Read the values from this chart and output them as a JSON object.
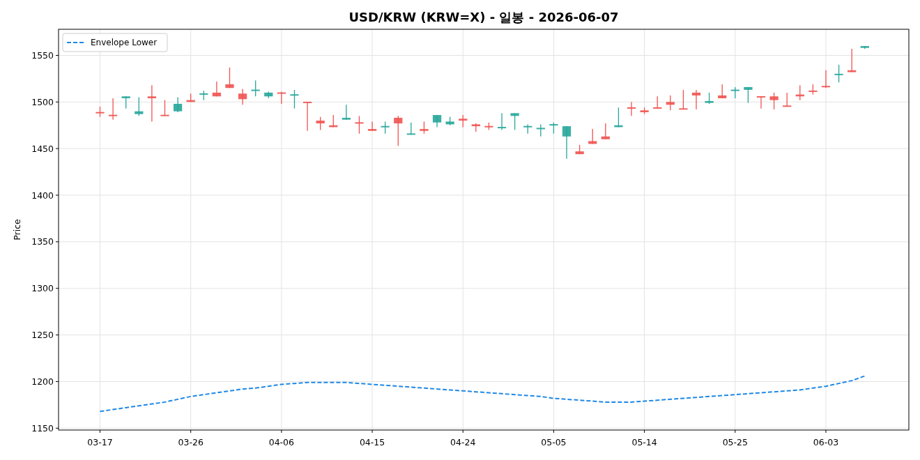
{
  "chart_data": {
    "type": "candlestick",
    "title": "USD/KRW (KRW=X) - 일봉 - 2026-06-07",
    "ylabel": "Price",
    "categories": [
      "03-17",
      null,
      null,
      null,
      null,
      null,
      null,
      "03-26",
      null,
      null,
      null,
      null,
      null,
      null,
      "04-06",
      null,
      null,
      null,
      null,
      null,
      null,
      "04-15",
      null,
      null,
      null,
      null,
      null,
      null,
      "04-24",
      null,
      null,
      null,
      null,
      null,
      null,
      "05-05",
      null,
      null,
      null,
      null,
      null,
      null,
      "05-14",
      null,
      null,
      null,
      null,
      null,
      null,
      "05-25",
      null,
      null,
      null,
      null,
      null,
      null,
      "06-03",
      null,
      null,
      null
    ],
    "ohlc": [
      [
        1488,
        1495,
        1484,
        1489
      ],
      [
        1485,
        1504,
        1481,
        1486
      ],
      [
        1506,
        1506,
        1493,
        1504
      ],
      [
        1490,
        1505,
        1485,
        1487
      ],
      [
        1504,
        1518,
        1479,
        1506
      ],
      [
        1485,
        1502,
        1485,
        1486
      ],
      [
        1498,
        1505,
        1489,
        1490
      ],
      [
        1500,
        1509,
        1500,
        1502
      ],
      [
        1509,
        1512,
        1502,
        1508
      ],
      [
        1506,
        1522,
        1506,
        1510
      ],
      [
        1515,
        1537,
        1515,
        1519
      ],
      [
        1503,
        1514,
        1497,
        1509
      ],
      [
        1513,
        1523,
        1506,
        1512
      ],
      [
        1510,
        1511,
        1504,
        1506
      ],
      [
        1509,
        1511,
        1498,
        1510
      ],
      [
        1508,
        1513,
        1493,
        1507
      ],
      [
        1499,
        1500,
        1469,
        1500
      ],
      [
        1477,
        1484,
        1470,
        1480
      ],
      [
        1473,
        1486,
        1473,
        1475
      ],
      [
        1483,
        1497,
        1481,
        1481
      ],
      [
        1477,
        1485,
        1466,
        1478
      ],
      [
        1469,
        1479,
        1469,
        1471
      ],
      [
        1474,
        1479,
        1466,
        1473
      ],
      [
        1477,
        1485,
        1453,
        1483
      ],
      [
        1466,
        1478,
        1465,
        1465
      ],
      [
        1469,
        1479,
        1466,
        1471
      ],
      [
        1486,
        1486,
        1473,
        1478
      ],
      [
        1479,
        1484,
        1475,
        1476
      ],
      [
        1480,
        1486,
        1473,
        1482
      ],
      [
        1474,
        1477,
        1468,
        1476
      ],
      [
        1473,
        1478,
        1470,
        1474
      ],
      [
        1473,
        1488,
        1470,
        1472
      ],
      [
        1488,
        1488,
        1470,
        1485
      ],
      [
        1474,
        1476,
        1466,
        1473
      ],
      [
        1472,
        1476,
        1463,
        1471
      ],
      [
        1476,
        1478,
        1466,
        1475
      ],
      [
        1474,
        1474,
        1439,
        1463
      ],
      [
        1444,
        1454,
        1444,
        1447
      ],
      [
        1455,
        1471,
        1455,
        1458
      ],
      [
        1460,
        1477,
        1460,
        1463
      ],
      [
        1475,
        1494,
        1473,
        1473
      ],
      [
        1493,
        1500,
        1485,
        1494
      ],
      [
        1489,
        1494,
        1487,
        1491
      ],
      [
        1493,
        1506,
        1493,
        1494
      ],
      [
        1497,
        1507,
        1491,
        1500
      ],
      [
        1492,
        1513,
        1492,
        1493
      ],
      [
        1507,
        1513,
        1492,
        1510
      ],
      [
        1501,
        1510,
        1498,
        1499
      ],
      [
        1504,
        1519,
        1504,
        1507
      ],
      [
        1513,
        1516,
        1504,
        1512
      ],
      [
        1516,
        1516,
        1499,
        1513
      ],
      [
        1505,
        1506,
        1493,
        1506
      ],
      [
        1502,
        1510,
        1492,
        1506
      ],
      [
        1495,
        1510,
        1495,
        1496
      ],
      [
        1506,
        1518,
        1502,
        1508
      ],
      [
        1511,
        1519,
        1508,
        1512
      ],
      [
        1516,
        1534,
        1515,
        1517
      ],
      [
        1530,
        1540,
        1521,
        1529
      ],
      [
        1532,
        1557,
        1532,
        1534
      ],
      [
        1560,
        1560,
        1557,
        1558
      ]
    ],
    "colors": [
      "#ef5350",
      "#ef5350",
      "#26a69a",
      "#26a69a",
      "#ef5350",
      "#ef5350",
      "#26a69a",
      "#ef5350",
      "#26a69a",
      "#ef5350",
      "#ef5350",
      "#ef5350",
      "#26a69a",
      "#26a69a",
      "#ef5350",
      "#26a69a",
      "#ef5350",
      "#ef5350",
      "#ef5350",
      "#26a69a",
      "#ef5350",
      "#ef5350",
      "#26a69a",
      "#ef5350",
      "#26a69a",
      "#ef5350",
      "#26a69a",
      "#26a69a",
      "#ef5350",
      "#ef5350",
      "#ef5350",
      "#26a69a",
      "#26a69a",
      "#26a69a",
      "#26a69a",
      "#26a69a",
      "#26a69a",
      "#ef5350",
      "#ef5350",
      "#ef5350",
      "#26a69a",
      "#ef5350",
      "#ef5350",
      "#ef5350",
      "#ef5350",
      "#ef5350",
      "#ef5350",
      "#26a69a",
      "#ef5350",
      "#26a69a",
      "#26a69a",
      "#ef5350",
      "#ef5350",
      "#ef5350",
      "#ef5350",
      "#ef5350",
      "#ef5350",
      "#26a69a",
      "#ef5350",
      "#26a69a"
    ],
    "series": [
      {
        "name": "Envelope Lower",
        "type": "line",
        "color": "#1e88e5",
        "line_style": "dashed",
        "values": [
          1168,
          1170,
          1172,
          1174,
          1176,
          1178,
          1181,
          1184,
          1186,
          1188,
          1190,
          1192,
          1193,
          1195,
          1197,
          1198,
          1199,
          1199,
          1199,
          1199,
          1198,
          1197,
          1196,
          1195,
          1194,
          1193,
          1192,
          1191,
          1190,
          1189,
          1188,
          1187,
          1186,
          1185,
          1184,
          1182,
          1181,
          1180,
          1179,
          1178,
          1178,
          1178,
          1179,
          1180,
          1181,
          1182,
          1183,
          1184,
          1185,
          1186,
          1187,
          1188,
          1189,
          1190,
          1191,
          1193,
          1195,
          1198,
          1201,
          1206
        ]
      }
    ],
    "ylim": [
      1148,
      1578
    ],
    "yticks": [
      1150,
      1200,
      1250,
      1300,
      1350,
      1400,
      1450,
      1500,
      1550
    ],
    "grid": true,
    "legend": "top left"
  }
}
